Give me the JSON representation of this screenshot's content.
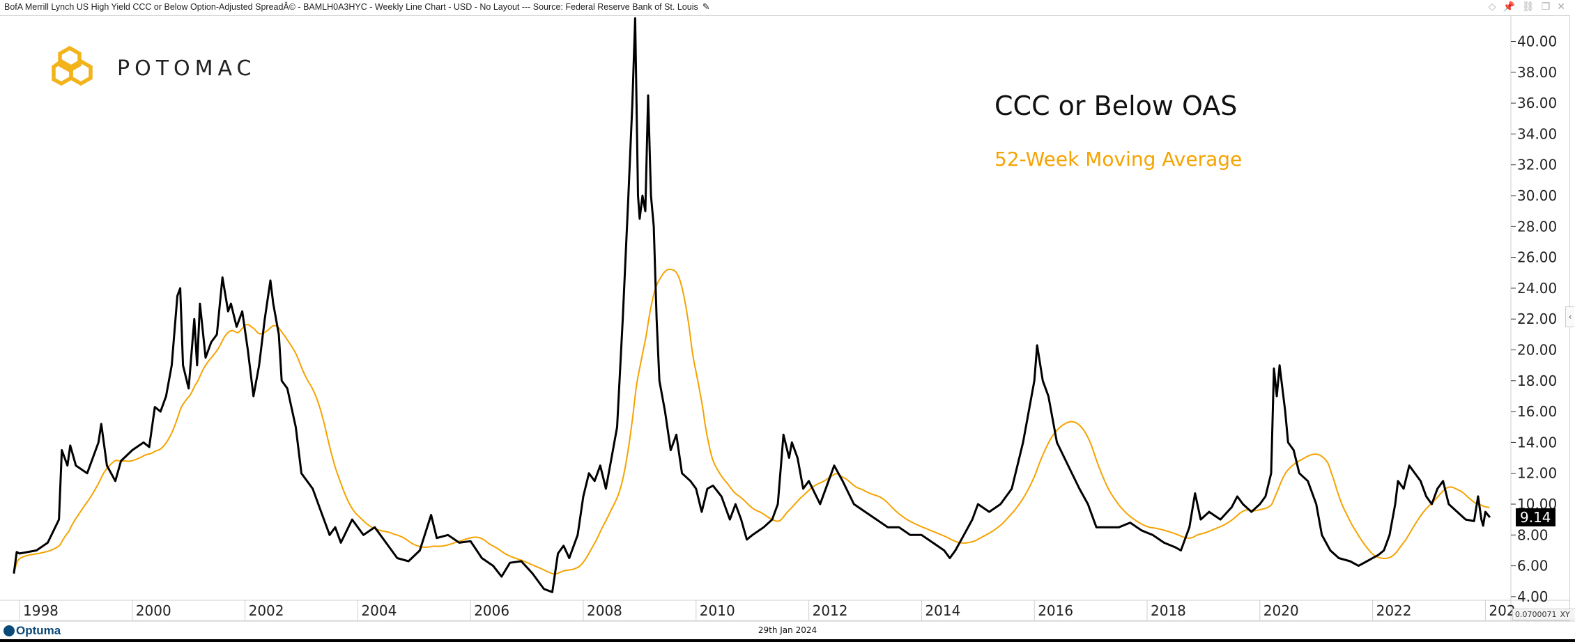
{
  "window": {
    "title": "BofA Merrill Lynch US High Yield CCC or Below Option-Adjusted SpreadÂ© - BAMLH0A3HYC - Weekly Line Chart - USD - No Layout --- Source: Federal Reserve Bank of St. Louis",
    "edit_icon": "pencil-icon",
    "icons": [
      "diamond-icon",
      "pin-icon",
      "link-icon",
      "restore-icon",
      "close-icon"
    ]
  },
  "logo": {
    "text": "POTOMAC",
    "color": "#f2b31b"
  },
  "footer": {
    "brand": "Optuma",
    "date": "29th Jan 2024",
    "cursor_readout": "0.0700071",
    "xy_label": "XY"
  },
  "colors": {
    "series": "#000000",
    "ma": "#f5a300"
  },
  "chart_data": {
    "type": "line",
    "title": "BofA Merrill Lynch US High Yield CCC or Below Option-Adjusted Spread",
    "annotations": [
      "CCC or Below OAS",
      "52-Week Moving Average"
    ],
    "last_value": "9.14",
    "xlabel": "",
    "ylabel": "",
    "xlim": [
      1997.6,
      2024.35
    ],
    "ylim": [
      3.6,
      41.8
    ],
    "x_ticks": [
      "1998",
      "2000",
      "2002",
      "2004",
      "2006",
      "2008",
      "2010",
      "2012",
      "2014",
      "2016",
      "2018",
      "2020",
      "2022",
      "202"
    ],
    "y_ticks": [
      "4.00",
      "6.00",
      "8.00",
      "10.00",
      "12.00",
      "14.00",
      "16.00",
      "18.00",
      "20.00",
      "22.00",
      "24.00",
      "26.00",
      "28.00",
      "30.00",
      "32.00",
      "34.00",
      "36.00",
      "38.00",
      "40.00"
    ],
    "grid": "vertical",
    "ma_window_weeks": 52,
    "series": [
      {
        "name": "CCC or Below OAS",
        "points": [
          [
            1997.9,
            5.5
          ],
          [
            1997.95,
            6.9
          ],
          [
            1998.0,
            6.8
          ],
          [
            1998.3,
            7.0
          ],
          [
            1998.5,
            7.5
          ],
          [
            1998.7,
            9
          ],
          [
            1998.75,
            13.5
          ],
          [
            1998.85,
            12.5
          ],
          [
            1998.9,
            13.8
          ],
          [
            1999.0,
            12.5
          ],
          [
            1999.2,
            12.0
          ],
          [
            1999.4,
            14
          ],
          [
            1999.45,
            15.2
          ],
          [
            1999.55,
            12.5
          ],
          [
            1999.7,
            11.5
          ],
          [
            1999.8,
            12.8
          ],
          [
            2000.0,
            13.5
          ],
          [
            2000.2,
            14
          ],
          [
            2000.3,
            13.7
          ],
          [
            2000.4,
            16.3
          ],
          [
            2000.5,
            16.0
          ],
          [
            2000.6,
            17
          ],
          [
            2000.7,
            19
          ],
          [
            2000.8,
            23.5
          ],
          [
            2000.85,
            24
          ],
          [
            2000.9,
            19
          ],
          [
            2001.0,
            17.5
          ],
          [
            2001.1,
            22
          ],
          [
            2001.15,
            19
          ],
          [
            2001.2,
            23
          ],
          [
            2001.3,
            19.5
          ],
          [
            2001.4,
            20.5
          ],
          [
            2001.5,
            21
          ],
          [
            2001.6,
            24.7
          ],
          [
            2001.7,
            22.5
          ],
          [
            2001.75,
            23
          ],
          [
            2001.85,
            21.5
          ],
          [
            2001.95,
            22.5
          ],
          [
            2002.05,
            20
          ],
          [
            2002.15,
            17
          ],
          [
            2002.25,
            19
          ],
          [
            2002.35,
            22
          ],
          [
            2002.45,
            24.5
          ],
          [
            2002.5,
            23
          ],
          [
            2002.6,
            21
          ],
          [
            2002.65,
            18
          ],
          [
            2002.75,
            17.5
          ],
          [
            2002.9,
            15
          ],
          [
            2003.0,
            12
          ],
          [
            2003.2,
            11
          ],
          [
            2003.35,
            9.5
          ],
          [
            2003.5,
            8
          ],
          [
            2003.6,
            8.5
          ],
          [
            2003.7,
            7.5
          ],
          [
            2003.9,
            9
          ],
          [
            2004.1,
            8
          ],
          [
            2004.3,
            8.5
          ],
          [
            2004.5,
            7.5
          ],
          [
            2004.7,
            6.5
          ],
          [
            2004.9,
            6.3
          ],
          [
            2005.1,
            7.0
          ],
          [
            2005.3,
            9.3
          ],
          [
            2005.4,
            7.8
          ],
          [
            2005.6,
            8
          ],
          [
            2005.8,
            7.5
          ],
          [
            2006.0,
            7.6
          ],
          [
            2006.2,
            6.5
          ],
          [
            2006.4,
            6
          ],
          [
            2006.55,
            5.3
          ],
          [
            2006.7,
            6.2
          ],
          [
            2006.9,
            6.3
          ],
          [
            2007.1,
            5.5
          ],
          [
            2007.3,
            4.5
          ],
          [
            2007.45,
            4.3
          ],
          [
            2007.55,
            6.8
          ],
          [
            2007.65,
            7.3
          ],
          [
            2007.75,
            6.5
          ],
          [
            2007.9,
            8
          ],
          [
            2008.0,
            10.5
          ],
          [
            2008.1,
            12
          ],
          [
            2008.2,
            11.5
          ],
          [
            2008.3,
            12.5
          ],
          [
            2008.4,
            11
          ],
          [
            2008.5,
            13
          ],
          [
            2008.6,
            15
          ],
          [
            2008.7,
            22
          ],
          [
            2008.8,
            30
          ],
          [
            2008.87,
            36
          ],
          [
            2008.92,
            41.5
          ],
          [
            2008.97,
            30
          ],
          [
            2009.0,
            28.5
          ],
          [
            2009.05,
            30
          ],
          [
            2009.1,
            29
          ],
          [
            2009.15,
            36.5
          ],
          [
            2009.2,
            30
          ],
          [
            2009.25,
            28
          ],
          [
            2009.3,
            22
          ],
          [
            2009.35,
            18
          ],
          [
            2009.45,
            16
          ],
          [
            2009.55,
            13.5
          ],
          [
            2009.65,
            14.5
          ],
          [
            2009.75,
            12
          ],
          [
            2009.9,
            11.5
          ],
          [
            2010.0,
            11
          ],
          [
            2010.1,
            9.5
          ],
          [
            2010.2,
            11
          ],
          [
            2010.3,
            11.2
          ],
          [
            2010.45,
            10.5
          ],
          [
            2010.6,
            9
          ],
          [
            2010.7,
            10
          ],
          [
            2010.8,
            9
          ],
          [
            2010.9,
            7.7
          ],
          [
            2011.0,
            8
          ],
          [
            2011.2,
            8.5
          ],
          [
            2011.35,
            9
          ],
          [
            2011.45,
            10
          ],
          [
            2011.55,
            14.5
          ],
          [
            2011.65,
            13
          ],
          [
            2011.7,
            14
          ],
          [
            2011.8,
            13
          ],
          [
            2011.9,
            11
          ],
          [
            2012.0,
            11.5
          ],
          [
            2012.2,
            10
          ],
          [
            2012.35,
            11.5
          ],
          [
            2012.45,
            12.5
          ],
          [
            2012.6,
            11.5
          ],
          [
            2012.8,
            10
          ],
          [
            2013.0,
            9.5
          ],
          [
            2013.2,
            9
          ],
          [
            2013.4,
            8.5
          ],
          [
            2013.6,
            8.5
          ],
          [
            2013.8,
            8
          ],
          [
            2014.0,
            8
          ],
          [
            2014.2,
            7.5
          ],
          [
            2014.4,
            7
          ],
          [
            2014.5,
            6.5
          ],
          [
            2014.6,
            7
          ],
          [
            2014.75,
            8
          ],
          [
            2014.9,
            9
          ],
          [
            2015.0,
            10
          ],
          [
            2015.2,
            9.5
          ],
          [
            2015.4,
            10
          ],
          [
            2015.6,
            11
          ],
          [
            2015.8,
            14
          ],
          [
            2015.9,
            16
          ],
          [
            2016.0,
            18
          ],
          [
            2016.05,
            20.3
          ],
          [
            2016.15,
            18
          ],
          [
            2016.25,
            17
          ],
          [
            2016.4,
            14
          ],
          [
            2016.6,
            12.5
          ],
          [
            2016.8,
            11
          ],
          [
            2016.95,
            10
          ],
          [
            2017.1,
            8.5
          ],
          [
            2017.3,
            8.5
          ],
          [
            2017.5,
            8.5
          ],
          [
            2017.7,
            8.8
          ],
          [
            2017.9,
            8.3
          ],
          [
            2018.1,
            8.0
          ],
          [
            2018.3,
            7.5
          ],
          [
            2018.5,
            7.2
          ],
          [
            2018.6,
            7
          ],
          [
            2018.75,
            8.5
          ],
          [
            2018.85,
            10.7
          ],
          [
            2018.95,
            9
          ],
          [
            2019.1,
            9.5
          ],
          [
            2019.3,
            9
          ],
          [
            2019.5,
            9.8
          ],
          [
            2019.6,
            10.5
          ],
          [
            2019.7,
            10
          ],
          [
            2019.85,
            9.5
          ],
          [
            2020.0,
            10
          ],
          [
            2020.1,
            10.5
          ],
          [
            2020.2,
            12
          ],
          [
            2020.25,
            18.8
          ],
          [
            2020.3,
            17
          ],
          [
            2020.35,
            19
          ],
          [
            2020.45,
            16
          ],
          [
            2020.5,
            14
          ],
          [
            2020.6,
            13.5
          ],
          [
            2020.7,
            12
          ],
          [
            2020.85,
            11.5
          ],
          [
            2021.0,
            10
          ],
          [
            2021.1,
            8
          ],
          [
            2021.25,
            7
          ],
          [
            2021.4,
            6.5
          ],
          [
            2021.6,
            6.3
          ],
          [
            2021.75,
            6
          ],
          [
            2021.9,
            6.3
          ],
          [
            2022.0,
            6.5
          ],
          [
            2022.1,
            6.7
          ],
          [
            2022.2,
            7.0
          ],
          [
            2022.3,
            8
          ],
          [
            2022.4,
            10
          ],
          [
            2022.45,
            11.5
          ],
          [
            2022.55,
            11
          ],
          [
            2022.65,
            12.5
          ],
          [
            2022.75,
            12
          ],
          [
            2022.85,
            11.5
          ],
          [
            2022.95,
            10.5
          ],
          [
            2023.05,
            10
          ],
          [
            2023.15,
            11
          ],
          [
            2023.25,
            11.5
          ],
          [
            2023.35,
            10
          ],
          [
            2023.5,
            9.5
          ],
          [
            2023.65,
            9.0
          ],
          [
            2023.8,
            8.9
          ],
          [
            2023.87,
            10.5
          ],
          [
            2023.93,
            9.0
          ],
          [
            2023.96,
            8.6
          ],
          [
            2024.0,
            9.5
          ],
          [
            2024.08,
            9.14
          ]
        ]
      }
    ]
  }
}
